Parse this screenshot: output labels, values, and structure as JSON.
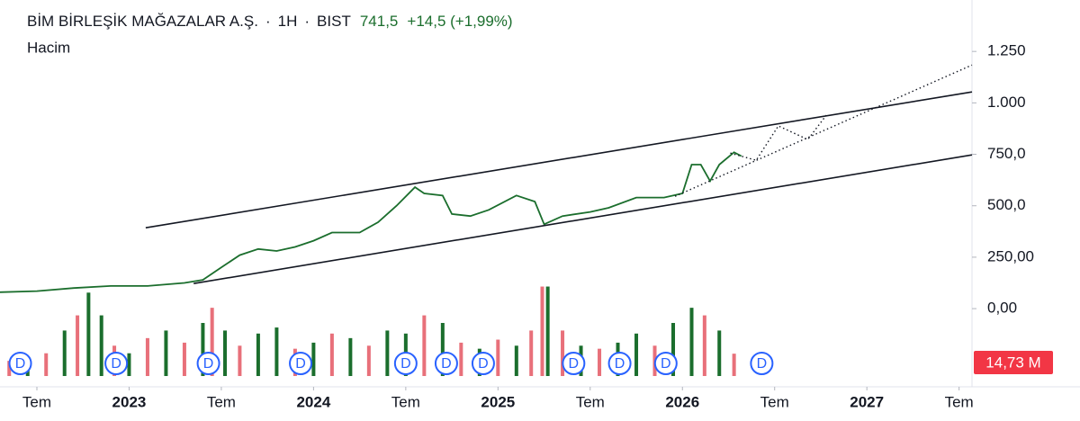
{
  "chart_data": [
    {
      "type": "line",
      "title": "BİM BİRLEŞİK MAĞAZALAR A.Ş.",
      "interval": "1H",
      "exchange": "BIST",
      "last": {
        "value": 741.5,
        "label": "741,5"
      },
      "change": "+14,5 (+1,99%)",
      "color": "#1b6e2d",
      "x": [
        2022.3,
        2022.5,
        2022.7,
        2022.9,
        2023.1,
        2023.3,
        2023.4,
        2023.5,
        2023.6,
        2023.7,
        2023.8,
        2023.9,
        2024.0,
        2024.1,
        2024.25,
        2024.35,
        2024.45,
        2024.55,
        2024.6,
        2024.7,
        2024.75,
        2024.85,
        2024.95,
        2025.1,
        2025.2,
        2025.25,
        2025.35,
        2025.5,
        2025.6,
        2025.75,
        2025.9,
        2026.0,
        2026.05,
        2026.1,
        2026.15,
        2026.2,
        2026.28,
        2026.32
      ],
      "values": [
        80,
        85,
        100,
        110,
        110,
        125,
        140,
        200,
        260,
        290,
        280,
        300,
        330,
        370,
        370,
        420,
        500,
        590,
        560,
        550,
        460,
        450,
        480,
        550,
        520,
        410,
        450,
        470,
        490,
        540,
        540,
        560,
        700,
        700,
        620,
        700,
        760,
        741.5
      ],
      "xlim": [
        2022.3,
        2027.57
      ],
      "ylim": [
        -380,
        1500
      ],
      "xticks": [
        {
          "value": 2022.5,
          "label": "Tem"
        },
        2023,
        {
          "value": 2023.5,
          "label": "Tem"
        },
        2024,
        {
          "value": 2024.5,
          "label": "Tem"
        },
        2025,
        {
          "value": 2025.5,
          "label": "Tem"
        },
        2026,
        {
          "value": 2026.5,
          "label": "Tem"
        },
        2027,
        {
          "value": 2027.5,
          "label": "Tem"
        }
      ],
      "yticks": [
        {
          "value": 0,
          "label": "0,00"
        },
        {
          "value": 250,
          "label": "250,00"
        },
        {
          "value": 500,
          "label": "500,0"
        },
        {
          "value": 750,
          "label": "750,0"
        },
        {
          "value": 1000,
          "label": "1.000"
        },
        {
          "value": 1250,
          "label": "1.250"
        }
      ],
      "drawings": [
        {
          "style": "solid",
          "points": [
            [
              2023.09,
              393
            ],
            [
              2027.57,
              1053
            ]
          ]
        },
        {
          "style": "solid",
          "points": [
            [
              2023.35,
              122
            ],
            [
              2027.57,
              747
            ]
          ]
        },
        {
          "style": "dotted",
          "points": [
            [
              2025.96,
              546
            ],
            [
              2027.57,
              1184
            ]
          ]
        },
        {
          "style": "dotted",
          "points": [
            [
              2026.26,
              756
            ],
            [
              2026.4,
              721
            ],
            [
              2026.52,
              888
            ],
            [
              2026.68,
              822
            ],
            [
              2026.78,
              940
            ]
          ]
        }
      ],
      "dividends": [
        {
          "x": 2022.41,
          "label": "D"
        },
        {
          "x": 2022.93,
          "label": "D"
        },
        {
          "x": 2023.43,
          "label": "D"
        },
        {
          "x": 2023.93,
          "label": "D"
        },
        {
          "x": 2024.5,
          "label": "D"
        },
        {
          "x": 2024.72,
          "label": "D"
        },
        {
          "x": 2024.92,
          "label": "D"
        },
        {
          "x": 2025.41,
          "label": "D"
        },
        {
          "x": 2025.66,
          "label": "D"
        },
        {
          "x": 2025.91,
          "label": "D"
        },
        {
          "x": 2026.43,
          "label": "D"
        }
      ]
    },
    {
      "type": "bar",
      "title": "Hacim",
      "ylim": [
        0,
        70
      ],
      "x": [
        2022.35,
        2022.45,
        2022.55,
        2022.65,
        2022.72,
        2022.78,
        2022.85,
        2022.92,
        2023.0,
        2023.1,
        2023.2,
        2023.3,
        2023.4,
        2023.45,
        2023.52,
        2023.6,
        2023.7,
        2023.8,
        2023.9,
        2024.0,
        2024.1,
        2024.2,
        2024.3,
        2024.4,
        2024.5,
        2024.6,
        2024.7,
        2024.8,
        2024.9,
        2025.0,
        2025.1,
        2025.18,
        2025.24,
        2025.27,
        2025.35,
        2025.45,
        2025.55,
        2025.65,
        2025.75,
        2025.85,
        2025.95,
        2026.05,
        2026.12,
        2026.2,
        2026.28
      ],
      "values": [
        10,
        12,
        15,
        30,
        40,
        55,
        40,
        20,
        15,
        25,
        30,
        22,
        35,
        45,
        30,
        20,
        28,
        32,
        18,
        22,
        28,
        25,
        20,
        30,
        28,
        40,
        35,
        22,
        18,
        24,
        20,
        30,
        59,
        59,
        30,
        20,
        18,
        22,
        28,
        20,
        35,
        45,
        40,
        30,
        14.73
      ],
      "colors": [
        "#e8707a",
        "#1b6e2d",
        "#e8707a",
        "#1b6e2d",
        "#e8707a",
        "#1b6e2d",
        "#1b6e2d",
        "#e8707a",
        "#1b6e2d",
        "#e8707a",
        "#1b6e2d",
        "#e8707a",
        "#1b6e2d",
        "#e8707a",
        "#1b6e2d",
        "#e8707a",
        "#1b6e2d",
        "#1b6e2d",
        "#e8707a",
        "#1b6e2d",
        "#e8707a",
        "#1b6e2d",
        "#e8707a",
        "#1b6e2d",
        "#1b6e2d",
        "#e8707a",
        "#1b6e2d",
        "#e8707a",
        "#1b6e2d",
        "#e8707a",
        "#1b6e2d",
        "#e8707a",
        "#e8707a",
        "#1b6e2d",
        "#e8707a",
        "#1b6e2d",
        "#e8707a",
        "#1b6e2d",
        "#1b6e2d",
        "#e8707a",
        "#1b6e2d",
        "#1b6e2d",
        "#e8707a",
        "#1b6e2d",
        "#e8707a"
      ],
      "last_label": {
        "value": 14.73,
        "label": "14,73 M"
      }
    }
  ]
}
